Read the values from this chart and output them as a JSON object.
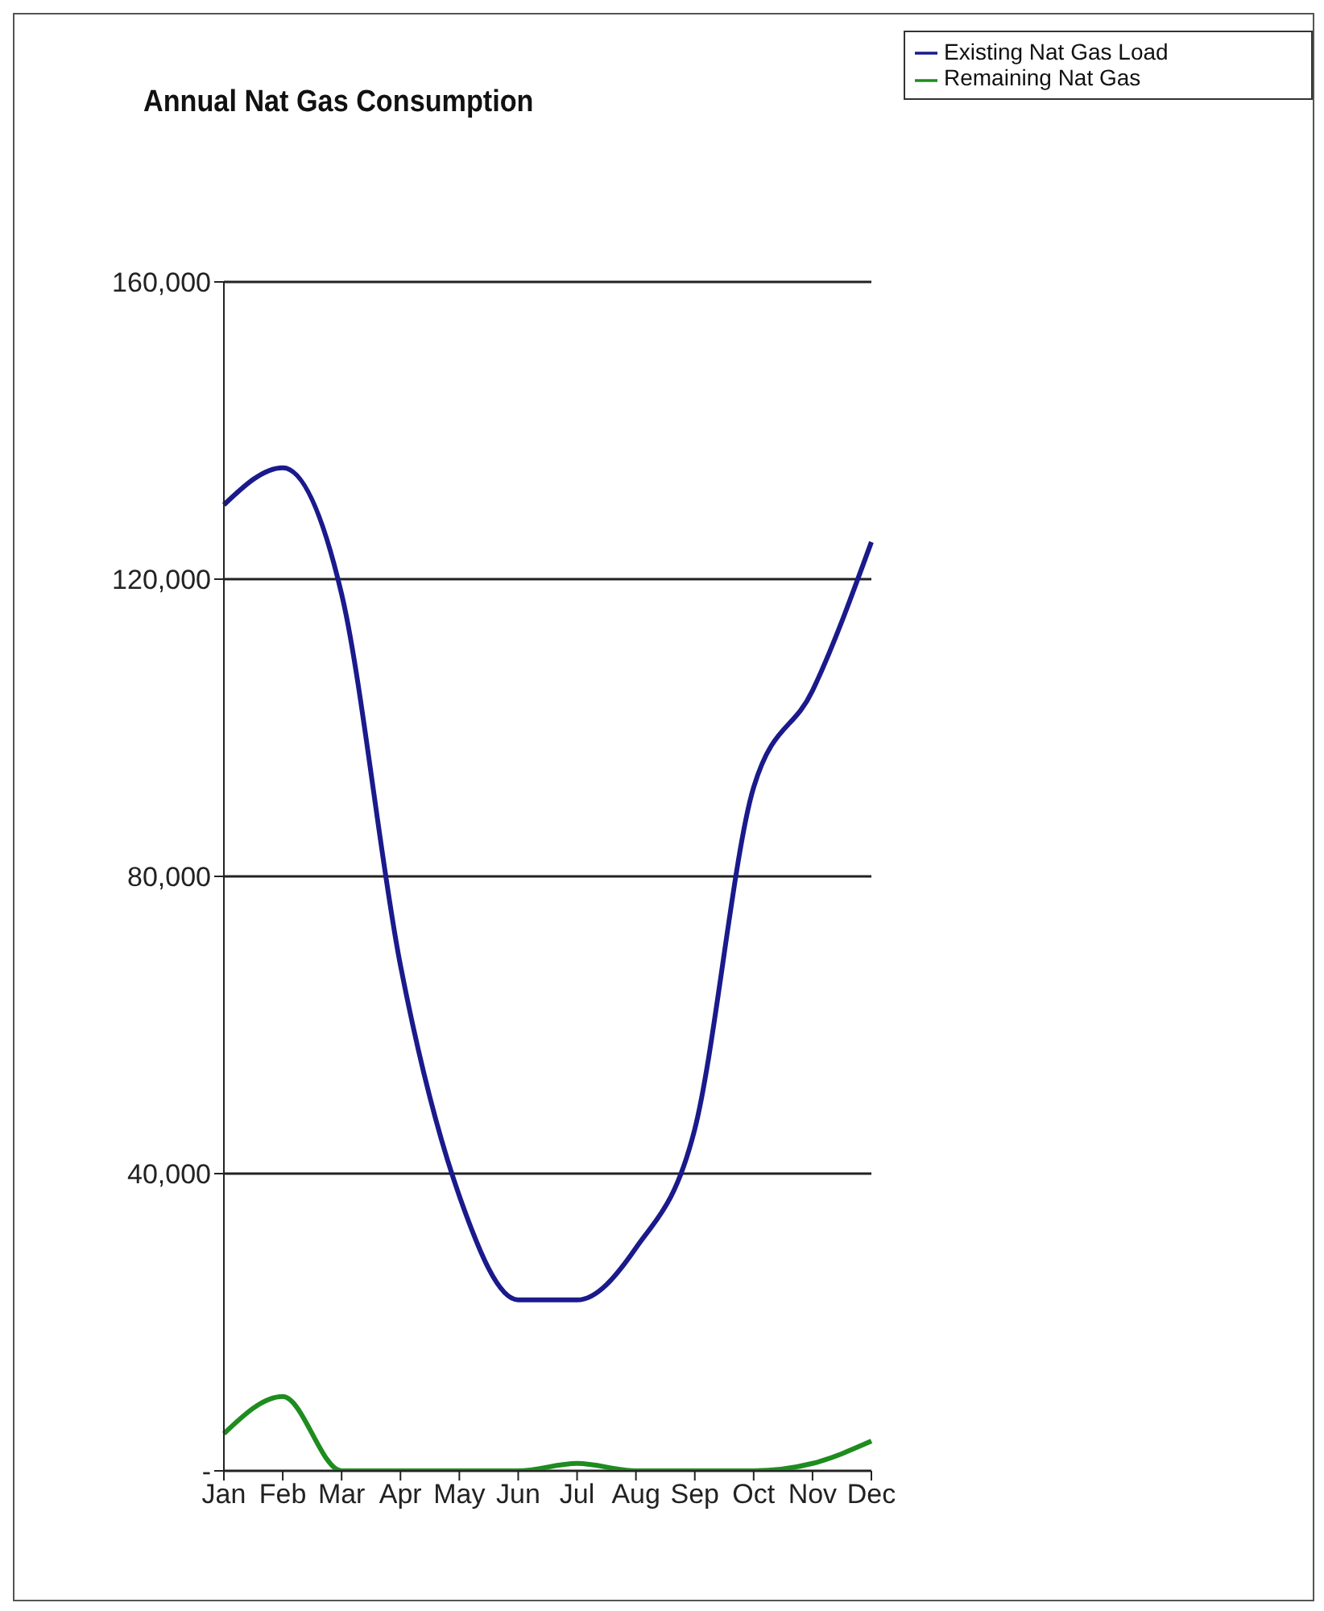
{
  "chart_data": {
    "type": "line",
    "title": "Annual Nat Gas Consumption",
    "categories": [
      "Jan",
      "Feb",
      "Mar",
      "Apr",
      "May",
      "Jun",
      "Jul",
      "Aug",
      "Sep",
      "Oct",
      "Nov",
      "Dec"
    ],
    "series": [
      {
        "name": "Existing Nat Gas Load",
        "color": "#1a1a8c",
        "values": [
          130000,
          135000,
          118000,
          68000,
          37000,
          23000,
          23000,
          30000,
          46000,
          92000,
          105000,
          125000
        ]
      },
      {
        "name": "Remaining Nat Gas",
        "color": "#1e8c1e",
        "values": [
          5000,
          10000,
          0,
          0,
          0,
          0,
          1000,
          0,
          0,
          0,
          1000,
          4000
        ]
      }
    ],
    "ylim": [
      0,
      160000
    ],
    "yticks": [
      {
        "value": 0,
        "label": "-"
      },
      {
        "value": 40000,
        "label": "40,000"
      },
      {
        "value": 80000,
        "label": "80,000"
      },
      {
        "value": 120000,
        "label": "120,000"
      },
      {
        "value": 160000,
        "label": "160,000"
      }
    ],
    "grid": "y",
    "legend": "top right",
    "marker": "none",
    "line_style": "solid"
  }
}
